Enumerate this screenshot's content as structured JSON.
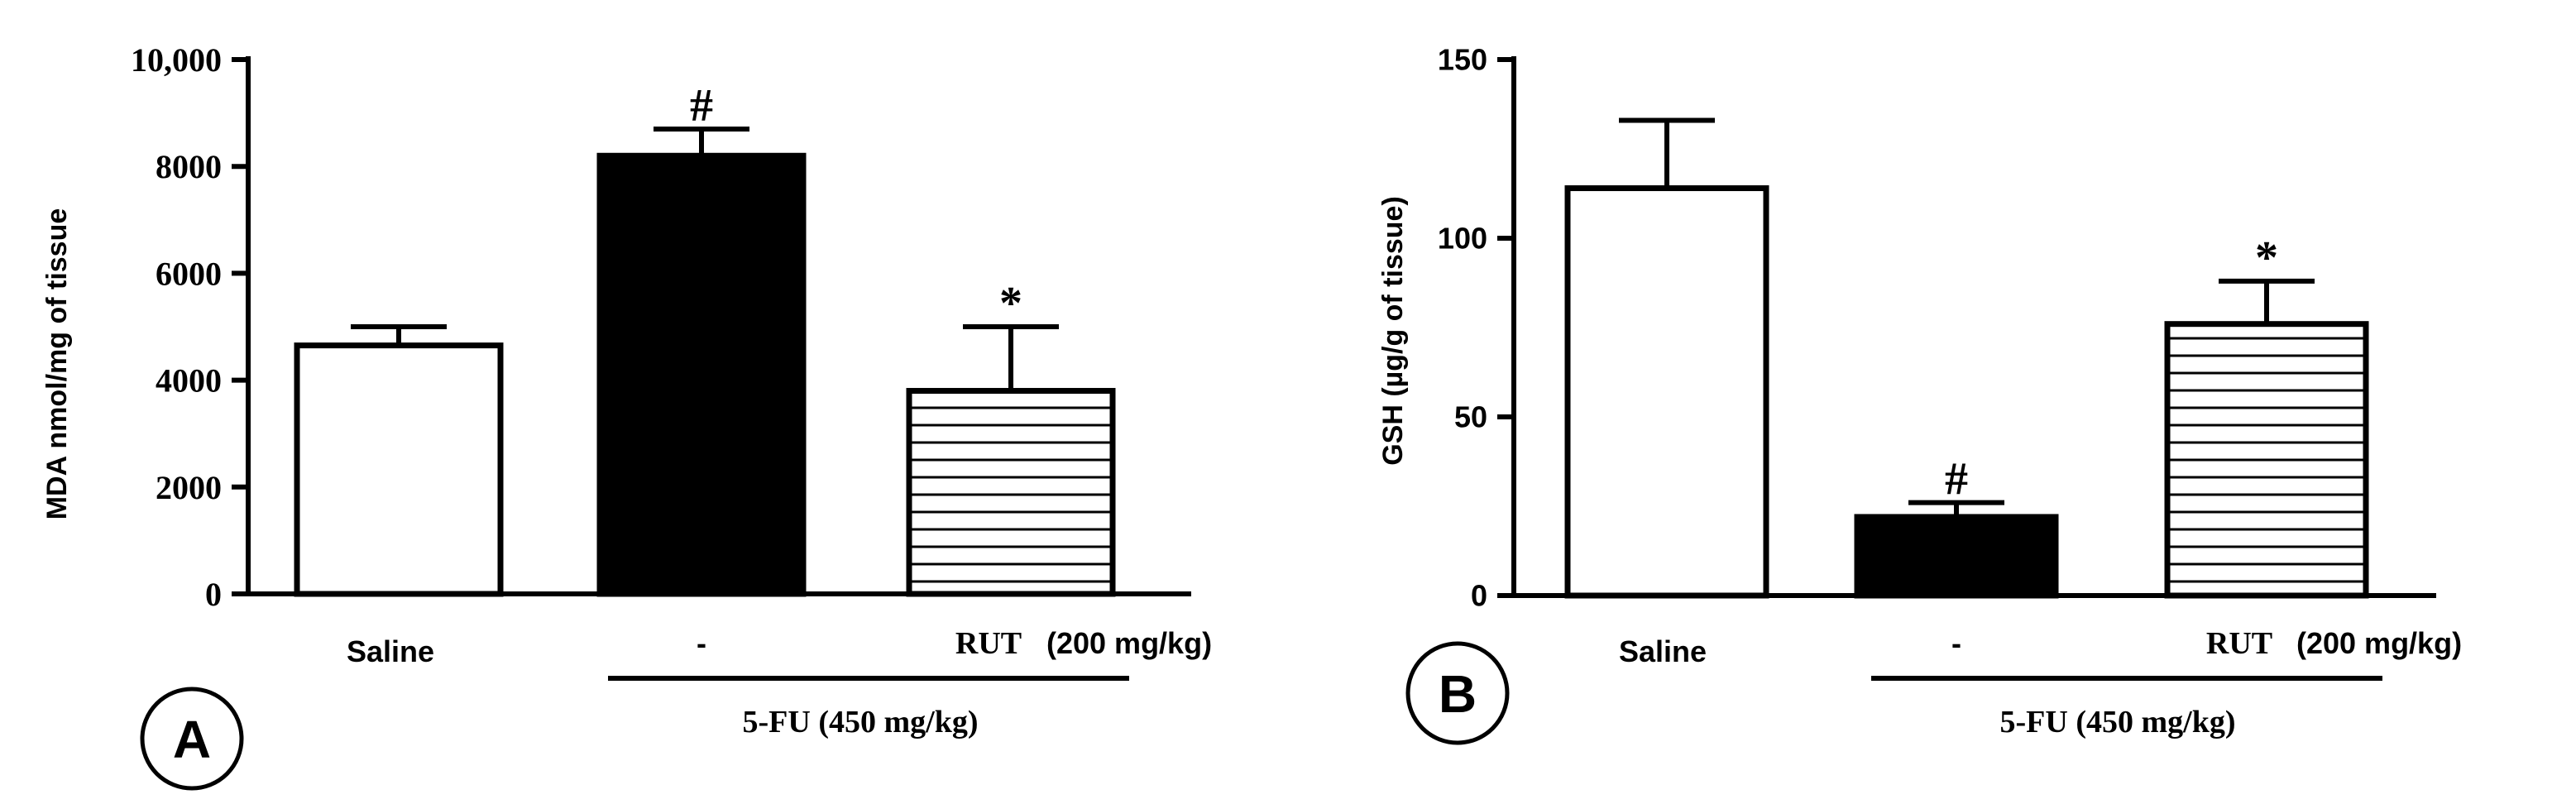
{
  "chart_data": [
    {
      "type": "bar",
      "panel_label": "A",
      "ylabel": "MDA nmol/mg of tissue",
      "ylim": [
        0,
        10000
      ],
      "yticks": [
        0,
        2000,
        4000,
        6000,
        8000,
        10000
      ],
      "ytick_labels": [
        "0",
        "2000",
        "4000",
        "6000",
        "8000",
        "10,000"
      ],
      "categories": [
        "Saline",
        "-",
        "RUT"
      ],
      "values": [
        4650,
        8200,
        3800
      ],
      "errors": [
        350,
        500,
        1200
      ],
      "fills": [
        "open",
        "solid",
        "striped"
      ],
      "annotations": [
        "",
        "#",
        "*"
      ],
      "dose_label": "(200 mg/kg)",
      "group_label": "5-FU (450 mg/kg)"
    },
    {
      "type": "bar",
      "panel_label": "B",
      "ylabel": "GSH (µg/g of tissue)",
      "ylim": [
        0,
        150
      ],
      "yticks": [
        0,
        50,
        100,
        150
      ],
      "ytick_labels": [
        "0",
        "50",
        "100",
        "150"
      ],
      "categories": [
        "Saline",
        "-",
        "RUT"
      ],
      "values": [
        114,
        22,
        76
      ],
      "errors": [
        19,
        4,
        12
      ],
      "fills": [
        "open",
        "solid",
        "striped"
      ],
      "annotations": [
        "",
        "#",
        "*"
      ],
      "dose_label": "(200 mg/kg)",
      "group_label": "5-FU (450 mg/kg)"
    }
  ]
}
